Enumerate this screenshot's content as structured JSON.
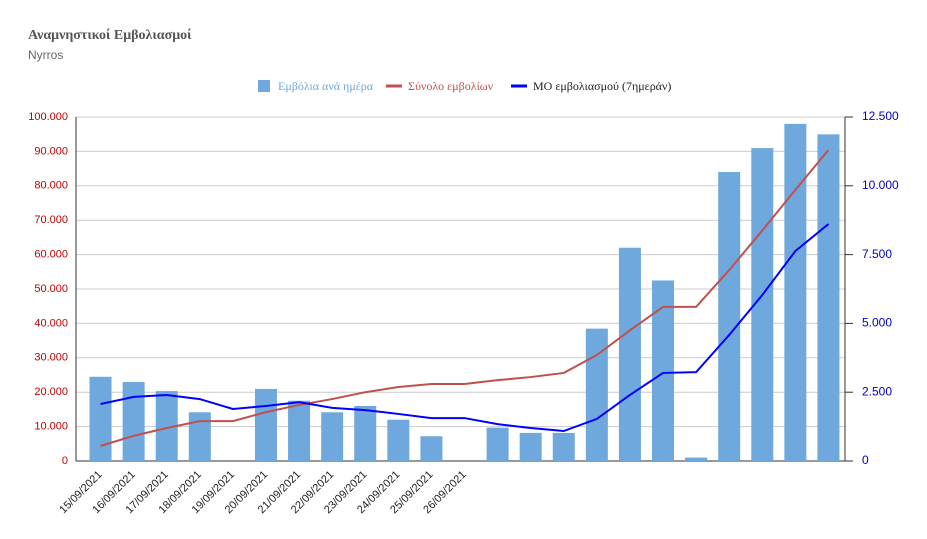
{
  "chart_data": {
    "type": "bar",
    "title": "Αναμνηστικοί Εμβολιασμοί",
    "subtitle": "Nyrros",
    "categories": [
      "15/09/2021",
      "16/09/2021",
      "17/09/2021",
      "18/09/2021",
      "19/09/2021",
      "20/09/2021",
      "21/09/2021",
      "22/09/2021",
      "23/09/2021",
      "24/09/2021",
      "25/09/2021",
      "26/09/2021",
      null,
      null,
      null,
      null,
      null,
      null,
      null,
      null,
      null,
      null,
      null
    ],
    "series": [
      {
        "name": "Εμβόλια ανά ημέρα",
        "type": "bar",
        "color": "#6fa8dc",
        "axis": "y2",
        "values": [
          3060,
          2870,
          2540,
          1770,
          0,
          2620,
          2190,
          1770,
          2000,
          1500,
          900,
          0,
          1210,
          1020,
          1020,
          4810,
          7750,
          6560,
          125,
          10500,
          11370,
          12250,
          11870
        ]
      },
      {
        "name": "Σύνολο εμβολίων",
        "type": "line",
        "color": "#c0504d",
        "values": [
          4400,
          7300,
          9600,
          11600,
          11600,
          14200,
          16300,
          18000,
          20000,
          21500,
          22400,
          22400,
          23500,
          24400,
          25600,
          30800,
          38000,
          44800,
          44800,
          55500,
          67000,
          78800,
          90400
        ]
      },
      {
        "name": "ΜΟ εμβολιασμού (7ημεράν)",
        "type": "line",
        "color": "#0000ff",
        "axis": "y2",
        "values": [
          2070,
          2330,
          2400,
          2250,
          1890,
          2000,
          2140,
          1930,
          1850,
          1710,
          1560,
          1560,
          1340,
          1200,
          1090,
          1530,
          2400,
          3200,
          3230,
          4580,
          6030,
          7630,
          8610
        ]
      }
    ],
    "ylim": [
      0,
      100000
    ],
    "yticks": [
      0,
      {
        "value": 10000,
        "label": "10.000"
      },
      {
        "value": 20000,
        "label": "20.000"
      },
      {
        "value": 30000,
        "label": "30.000"
      },
      {
        "value": 40000,
        "label": "40.000"
      },
      {
        "value": 50000,
        "label": "50.000"
      },
      {
        "value": 60000,
        "label": "60.000"
      },
      {
        "value": 70000,
        "label": "70.000"
      },
      {
        "value": 80000,
        "label": "80.000"
      },
      {
        "value": 90000,
        "label": "90.000"
      },
      {
        "value": 100000,
        "label": "100.000"
      }
    ],
    "y2lim": [
      0,
      12500
    ],
    "y2ticks": [
      0,
      {
        "value": 2500,
        "label": "2.500"
      },
      {
        "value": 5000,
        "label": "5.000"
      },
      {
        "value": 7500,
        "label": "7.500"
      },
      {
        "value": 10000,
        "label": "10.000"
      },
      {
        "value": 12500,
        "label": "12.500"
      }
    ],
    "grid": true,
    "legend": "top"
  }
}
